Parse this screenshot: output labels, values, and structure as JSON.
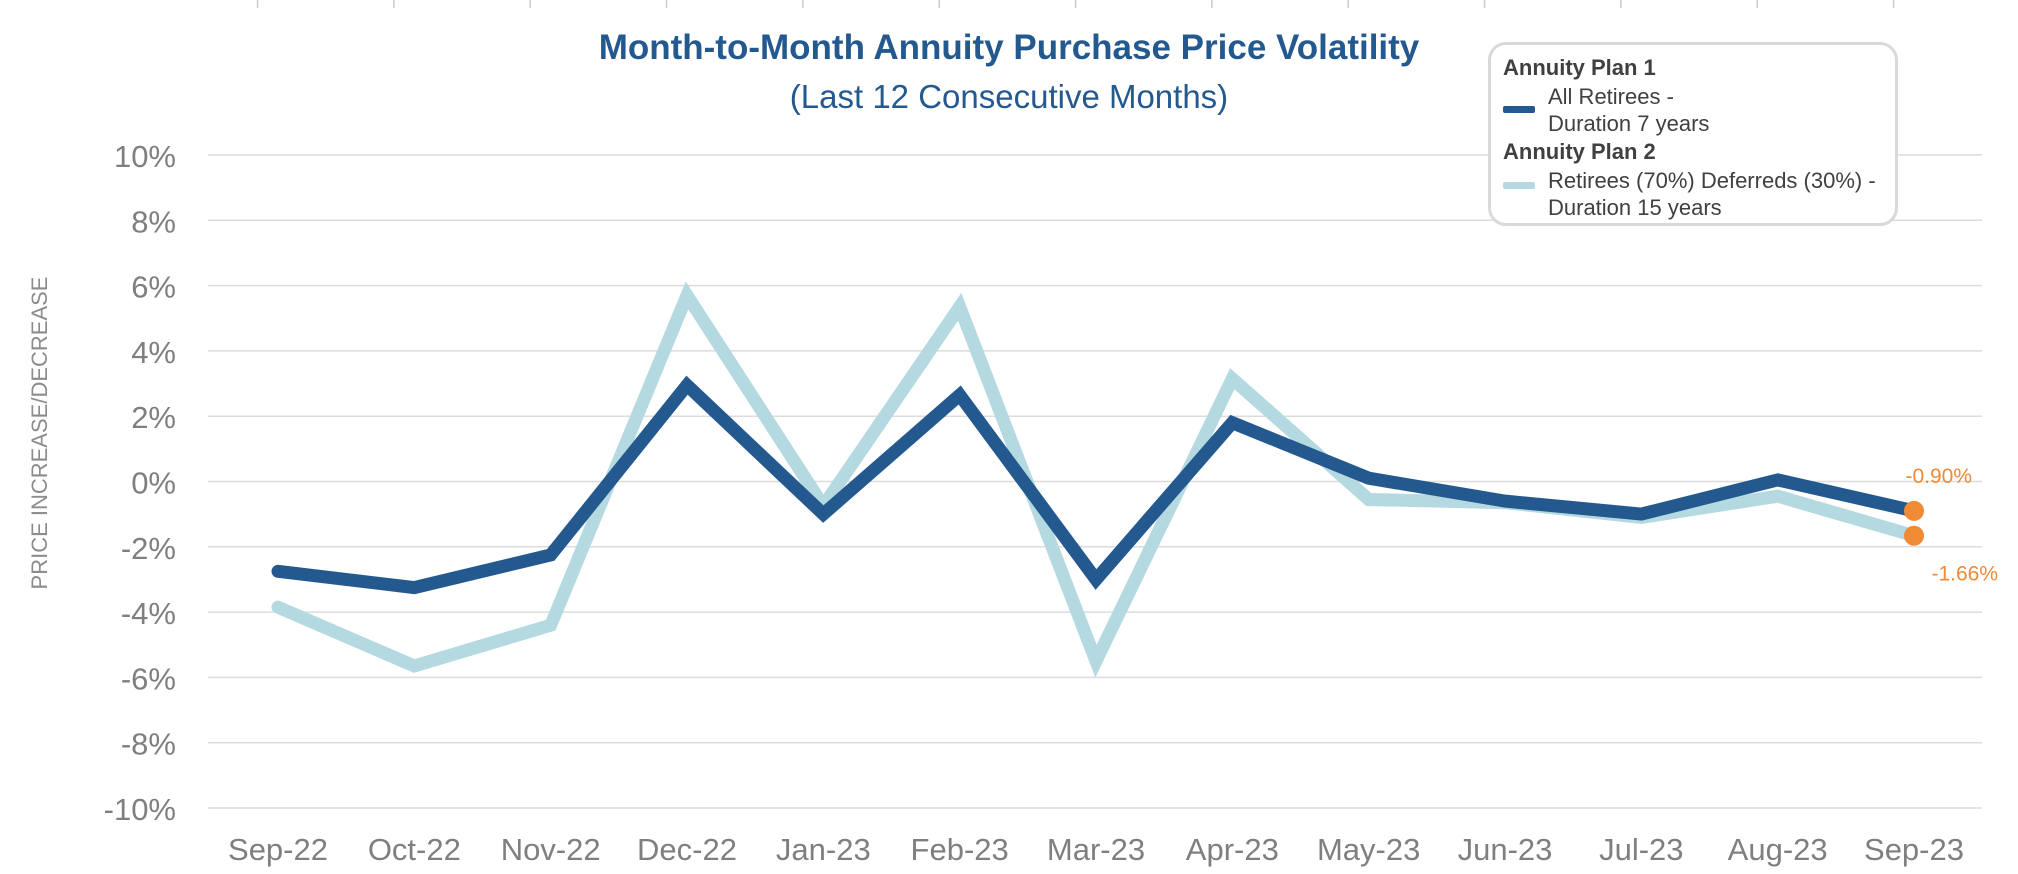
{
  "chart_data": {
    "type": "line",
    "title": "Month-to-Month Annuity Purchase Price Volatility",
    "subtitle": "(Last 12 Consecutive Months)",
    "xlabel": "",
    "ylabel": "PRICE INCREASE/DECREASE",
    "categories": [
      "Sep-22",
      "Oct-22",
      "Nov-22",
      "Dec-22",
      "Jan-23",
      "Feb-23",
      "Mar-23",
      "Apr-23",
      "May-23",
      "Jun-23",
      "Jul-23",
      "Aug-23",
      "Sep-23"
    ],
    "ylim": [
      -10,
      10
    ],
    "yticks": [
      -10,
      -8,
      -6,
      -4,
      -2,
      0,
      2,
      4,
      6,
      8,
      10
    ],
    "ytick_labels": [
      "-10%",
      "-8%",
      "-6%",
      "-4%",
      "-2%",
      "0%",
      "2%",
      "4%",
      "6%",
      "8%",
      "10%"
    ],
    "grid": true,
    "legend_position": "top-right",
    "series": [
      {
        "name": "Annuity Plan 1",
        "description_line1": "All Retirees -",
        "description_line2": "Duration 7 years",
        "color": "#24598f",
        "values": [
          -2.75,
          -3.25,
          -2.25,
          2.95,
          -1.0,
          2.65,
          -3.0,
          1.8,
          0.1,
          -0.6,
          -1.0,
          0.05,
          -0.9
        ],
        "end_label": "-0.90%"
      },
      {
        "name": "Annuity Plan 2",
        "description_line1": "Retirees (70%) Deferreds (30%) -",
        "description_line2": "Duration 15 years",
        "color": "#b5d9e0",
        "values": [
          -3.85,
          -5.65,
          -4.4,
          5.7,
          -0.75,
          5.35,
          -5.5,
          3.15,
          -0.55,
          -0.65,
          -1.1,
          -0.45,
          -1.66
        ],
        "end_label": "-1.66%"
      }
    ],
    "marker_color": "#f08a35"
  }
}
